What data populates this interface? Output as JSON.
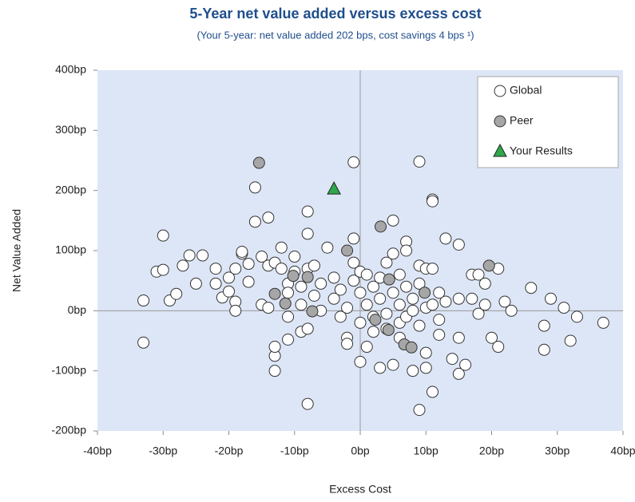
{
  "chart_data": {
    "type": "scatter",
    "title": "5-Year net value added versus excess cost",
    "subtitle": "(Your 5-year: net value added 202 bps, cost savings 4 bps ¹)",
    "x_label": "Excess Cost",
    "y_label": "Net Value Added",
    "xlim": [
      -40,
      40
    ],
    "ylim": [
      -200,
      400
    ],
    "xticks": [
      {
        "value": -40,
        "label": "-40bp"
      },
      {
        "value": -30,
        "label": "-30bp"
      },
      {
        "value": -20,
        "label": "-20bp"
      },
      {
        "value": -10,
        "label": "-10bp"
      },
      {
        "value": 0,
        "label": "0bp"
      },
      {
        "value": 10,
        "label": "10bp"
      },
      {
        "value": 20,
        "label": "20bp"
      },
      {
        "value": 30,
        "label": "30bp"
      },
      {
        "value": 40,
        "label": "40bp"
      }
    ],
    "yticks": [
      {
        "value": -200,
        "label": "-200bp"
      },
      {
        "value": -100,
        "label": "-100bp"
      },
      {
        "value": 0,
        "label": "0bp"
      },
      {
        "value": 100,
        "label": "100bp"
      },
      {
        "value": 200,
        "label": "200bp"
      },
      {
        "value": 300,
        "label": "300bp"
      },
      {
        "value": 400,
        "label": "400bp"
      }
    ],
    "legend": "top-right",
    "series": [
      {
        "name": "Global",
        "color": "#ffffff",
        "marker": "circle",
        "x": [
          -33,
          -33,
          -31,
          -30,
          -30,
          -29,
          -28,
          -27,
          -26,
          -25,
          -24,
          -22,
          -22,
          -21,
          -20,
          -20,
          -19,
          -19,
          -19,
          -18,
          -18,
          -17,
          -17,
          -16,
          -16,
          -15,
          -15,
          -14,
          -14,
          -14,
          -13,
          -13,
          -13,
          -13,
          -12,
          -12,
          -11,
          -11,
          -11,
          -11,
          -10,
          -10,
          -9,
          -9,
          -9,
          -8,
          -8,
          -8,
          -8,
          -8,
          -7,
          -7,
          -6,
          -6,
          -5,
          -4,
          -4,
          -3,
          -3,
          -2,
          -2,
          -2,
          -1,
          -1,
          -1,
          -1,
          0,
          0,
          0,
          0,
          1,
          1,
          1,
          2,
          2,
          2,
          3,
          3,
          3,
          4,
          4,
          4,
          5,
          5,
          5,
          5,
          6,
          6,
          6,
          6,
          7,
          7,
          7,
          7,
          8,
          8,
          8,
          9,
          9,
          9,
          9,
          9,
          10,
          10,
          10,
          10,
          11,
          11,
          11,
          11,
          11,
          12,
          12,
          12,
          13,
          13,
          14,
          15,
          15,
          15,
          15,
          16,
          17,
          17,
          18,
          18,
          19,
          19,
          20,
          21,
          21,
          22,
          23,
          26,
          28,
          28,
          29,
          31,
          32,
          33,
          37
        ],
        "y": [
          17,
          -53,
          65,
          68,
          125,
          17,
          28,
          75,
          92,
          45,
          92,
          70,
          45,
          22,
          32,
          55,
          70,
          15,
          0,
          95,
          98,
          48,
          78,
          205,
          148,
          90,
          10,
          5,
          155,
          75,
          80,
          -100,
          -75,
          -60,
          105,
          70,
          45,
          -48,
          -10,
          30,
          90,
          65,
          40,
          10,
          -35,
          165,
          128,
          70,
          -30,
          -155,
          75,
          25,
          45,
          0,
          105,
          55,
          20,
          35,
          -10,
          -45,
          -55,
          5,
          120,
          80,
          50,
          247,
          65,
          30,
          -20,
          -85,
          10,
          -60,
          60,
          40,
          -10,
          -35,
          20,
          55,
          -95,
          -5,
          80,
          -30,
          150,
          95,
          30,
          -90,
          60,
          10,
          -20,
          -45,
          115,
          100,
          40,
          -10,
          20,
          -100,
          0,
          248,
          75,
          45,
          -25,
          -165,
          70,
          -70,
          5,
          -95,
          185,
          182,
          -135,
          70,
          10,
          30,
          -15,
          -40,
          120,
          15,
          -80,
          110,
          -45,
          -105,
          20,
          -90,
          60,
          20,
          60,
          -5,
          45,
          10,
          -45,
          -60,
          70,
          15,
          0,
          38,
          -25,
          -65,
          20,
          5,
          -50,
          -10,
          -20
        ]
      },
      {
        "name": "Peer",
        "color": "#a6a6a6",
        "marker": "circle",
        "x": [
          -15.4,
          3.1,
          -2,
          -10.2,
          -8,
          4.4,
          19.6,
          -13,
          -11.4,
          -7.3,
          9.8,
          2.3,
          4.3,
          6.7,
          7.8
        ],
        "y": [
          246,
          140,
          100,
          58,
          56,
          52,
          75,
          28,
          12,
          -1,
          30,
          -15,
          -32,
          -56,
          -61
        ]
      },
      {
        "name": "Your Results",
        "color": "#2ea84a",
        "marker": "triangle",
        "x": [
          -4
        ],
        "y": [
          202
        ]
      }
    ]
  }
}
